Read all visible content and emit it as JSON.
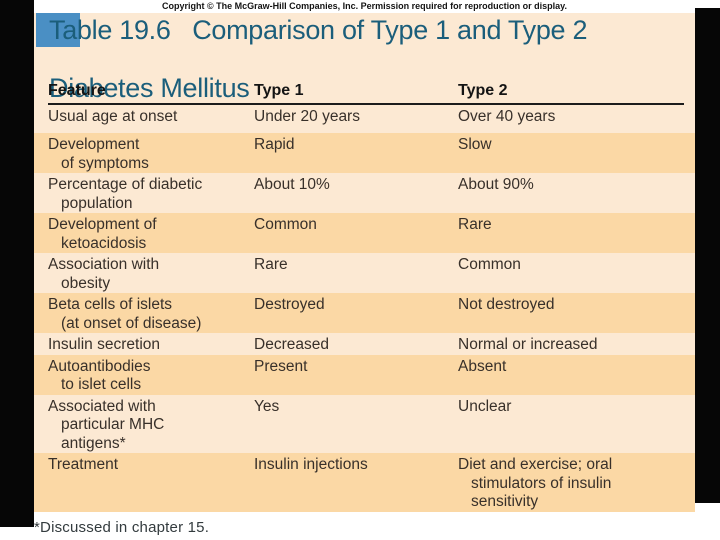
{
  "copyright": "Copyright © The McGraw-Hill Companies, Inc. Permission required for reproduction or display.",
  "title": {
    "line1": "Table 19.6   Comparison of Type 1 and Type 2",
    "line2": "Diabetes Mellitus"
  },
  "table": {
    "headers": [
      "Feature",
      "Type 1",
      "Type 2"
    ],
    "rows": [
      {
        "feature": "Usual age at onset",
        "type1": "Under 20 years",
        "type2": "Over 40 years"
      },
      {
        "feature": "Development\nof symptoms",
        "type1": "Rapid",
        "type2": "Slow"
      },
      {
        "feature": "Percentage of diabetic\npopulation",
        "type1": "About 10%",
        "type2": "About 90%"
      },
      {
        "feature": "Development of\nketoacidosis",
        "type1": "Common",
        "type2": "Rare"
      },
      {
        "feature": "Association with\nobesity",
        "type1": "Rare",
        "type2": "Common"
      },
      {
        "feature": "Beta cells of islets\n(at onset of disease)",
        "type1": "Destroyed",
        "type2": "Not destroyed"
      },
      {
        "feature": "Insulin secretion",
        "type1": "Decreased",
        "type2": "Normal or increased"
      },
      {
        "feature": "Autoantibodies\nto islet cells",
        "type1": "Present",
        "type2": "Absent"
      },
      {
        "feature": "Associated with\nparticular MHC\nantigens*",
        "type1": "Yes",
        "type2": "Unclear"
      },
      {
        "feature": "Treatment",
        "type1": "Insulin injections",
        "type2": "Diet and exercise; oral\nstimulators of insulin\nsensitivity"
      }
    ]
  },
  "footnote": "*Discussed in chapter 15.",
  "colors": {
    "slide_bg": "#fce9d3",
    "band": "#fbd8a5",
    "title": "#1b5e7b",
    "blue_square": "#4a8fc4",
    "bar": "#060606",
    "text": "#38302a",
    "header_text": "#141414",
    "footnote": "#333b3e"
  }
}
